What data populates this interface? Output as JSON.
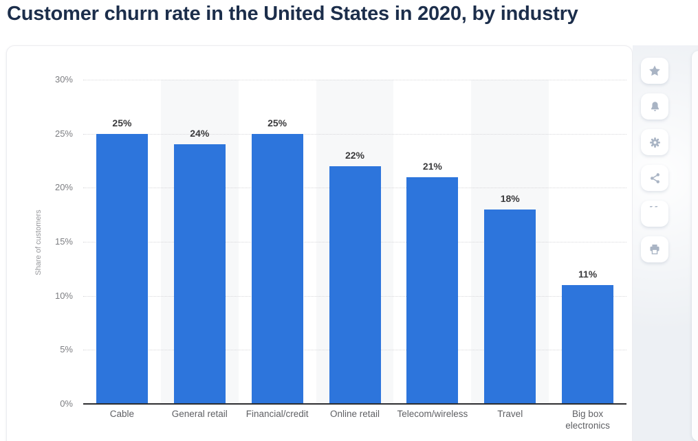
{
  "page": {
    "title": "Customer churn rate in the United States in 2020, by industry"
  },
  "chart_data": {
    "type": "bar",
    "title": "Customer churn rate in the United States in 2020, by industry",
    "categories": [
      "Cable",
      "General retail",
      "Financial/credit",
      "Online retail",
      "Telecom/wireless",
      "Travel",
      "Big box electronics"
    ],
    "values": [
      25,
      24,
      25,
      22,
      21,
      18,
      11
    ],
    "value_labels": [
      "25%",
      "24%",
      "25%",
      "22%",
      "21%",
      "18%",
      "11%"
    ],
    "xlabel": "",
    "ylabel": "Share of customers",
    "ylim": [
      0,
      30
    ],
    "yticks": [
      "0%",
      "5%",
      "10%",
      "15%",
      "20%",
      "25%",
      "30%"
    ],
    "grid": "horizontal dotted, solid baseline",
    "legend": "none",
    "bar_color": "#2d75dc",
    "stripe_color": "#f7f8f9",
    "striped_columns": [
      1,
      3,
      5
    ]
  },
  "toolbar": {
    "buttons": [
      {
        "id": "favorite",
        "icon": "star-icon"
      },
      {
        "id": "notifications",
        "icon": "bell-icon"
      },
      {
        "id": "settings",
        "icon": "gear-icon"
      },
      {
        "id": "share",
        "icon": "share-icon"
      },
      {
        "id": "cite",
        "icon": "quote-icon"
      },
      {
        "id": "print",
        "icon": "printer-icon"
      }
    ],
    "quote_glyph": "”"
  },
  "colors": {
    "title_text": "#1c2e4b",
    "bar": "#2d75dc",
    "gridline": "#d7d7da",
    "axis_line": "#2d2d30",
    "value_label": "#3a3a3c",
    "category_label": "#5e5f63",
    "tick_label": "#7c7d81",
    "y_axis_title": "#97989c",
    "card_bg": "#ffffff",
    "side_strip_bg": "#edf0f4",
    "icon": "#a9b4c4"
  }
}
